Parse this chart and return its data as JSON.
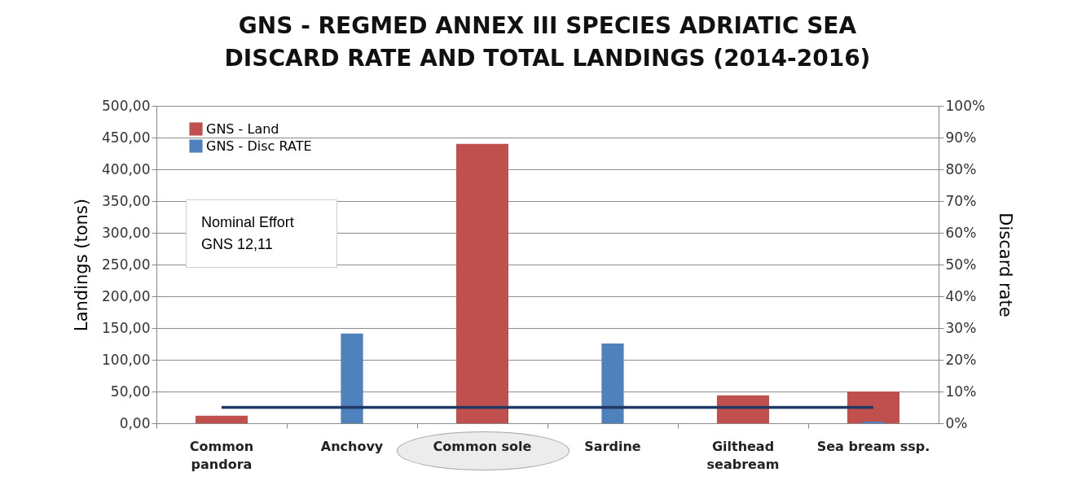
{
  "chart_data": {
    "type": "bar",
    "title": "GNS -  REGMED ANNEX III SPECIES ADRIATIC SEA\nDISCARD RATE AND  TOTAL LANDINGS (2014-2016)",
    "ylabel": "Landings (tons)",
    "y2label": "Discard rate",
    "categories": [
      "Common\npandora",
      "Anchovy",
      "Common sole",
      "Sardine",
      "Gilthead\nseabream",
      "Sea bream ssp."
    ],
    "series": [
      {
        "name": "GNS - Land",
        "color": "#c0504d",
        "values": [
          12,
          0,
          440,
          0,
          44,
          50
        ]
      },
      {
        "name": "GNS  - Disc RATE",
        "color": "#4f81bd",
        "axis": "y2",
        "values": [
          0,
          28.3,
          null,
          25.1,
          0,
          0.5
        ]
      },
      {
        "type": "line",
        "color": "#1f3864",
        "axis": "y2",
        "values": [
          5,
          5,
          5,
          5,
          5,
          5
        ]
      }
    ],
    "ylim": [
      0,
      500
    ],
    "yticks": [
      {
        "value": 0,
        "label": "0,00"
      },
      {
        "value": 50,
        "label": "50,00"
      },
      {
        "value": 100,
        "label": "100,00"
      },
      {
        "value": 150,
        "label": "150,00"
      },
      {
        "value": 200,
        "label": "200,00"
      },
      {
        "value": 250,
        "label": "250,00"
      },
      {
        "value": 300,
        "label": "300,00"
      },
      {
        "value": 350,
        "label": "350,00"
      },
      {
        "value": 400,
        "label": "400,00"
      },
      {
        "value": 450,
        "label": "450,00"
      },
      {
        "value": 500,
        "label": "500,00"
      }
    ],
    "y2lim": [
      0,
      100
    ],
    "y2ticks": [
      {
        "value": 0,
        "label": "0%"
      },
      {
        "value": 10,
        "label": "10%"
      },
      {
        "value": 20,
        "label": "20%"
      },
      {
        "value": 30,
        "label": "30%"
      },
      {
        "value": 40,
        "label": "40%"
      },
      {
        "value": 50,
        "label": "50%"
      },
      {
        "value": 60,
        "label": "60%"
      },
      {
        "value": 70,
        "label": "70%"
      },
      {
        "value": 80,
        "label": "80%"
      },
      {
        "value": 90,
        "label": "90%"
      },
      {
        "value": 100,
        "label": "100%"
      }
    ],
    "annotations": [
      "Nominal Effort GNS 12,11"
    ],
    "grid": "y",
    "legend": "top left",
    "marker": "none"
  }
}
